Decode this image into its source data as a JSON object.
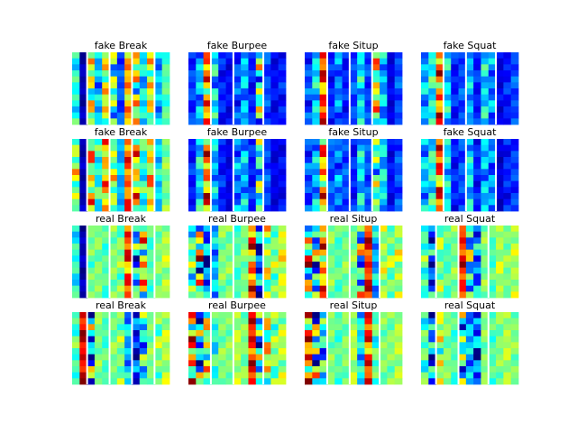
{
  "chart_data": {
    "type": "heatmap",
    "colormap": "jet",
    "value_range": [
      0,
      1
    ],
    "rows": 4,
    "cols": 4,
    "row_types": [
      "fake",
      "fake",
      "real",
      "real"
    ],
    "col_classes": [
      "Break",
      "Burpee",
      "Situp",
      "Squat"
    ],
    "panels": [
      {
        "title": "fake Break",
        "separator_columns": [
          2,
          5,
          8,
          11
        ],
        "column_profiles": [
          {
            "base": 0.4,
            "amp": 0.08
          },
          {
            "base": 0.05,
            "amp": 0.03
          },
          {
            "base": 0.55,
            "amp": 0.2
          },
          {
            "base": 0.3,
            "amp": 0.1
          },
          {
            "base": 0.6,
            "amp": 0.15
          },
          {
            "base": 0.45,
            "amp": 0.2
          },
          {
            "base": 0.2,
            "amp": 0.05
          },
          {
            "base": 0.7,
            "amp": 0.1
          },
          {
            "base": 0.55,
            "amp": 0.25
          },
          {
            "base": 0.35,
            "amp": 0.1
          },
          {
            "base": 0.6,
            "amp": 0.15
          },
          {
            "base": 0.3,
            "amp": 0.08
          },
          {
            "base": 0.45,
            "amp": 0.05
          }
        ]
      },
      {
        "title": "fake Burpee",
        "separator_columns": [
          3,
          6,
          10
        ],
        "column_profiles": [
          {
            "base": 0.18,
            "amp": 0.05
          },
          {
            "base": 0.3,
            "amp": 0.1
          },
          {
            "base": 0.72,
            "amp": 0.2
          },
          {
            "base": 0.35,
            "amp": 0.15
          },
          {
            "base": 0.15,
            "amp": 0.05
          },
          {
            "base": 0.12,
            "amp": 0.04
          },
          {
            "base": 0.2,
            "amp": 0.08
          },
          {
            "base": 0.3,
            "amp": 0.1
          },
          {
            "base": 0.15,
            "amp": 0.05
          },
          {
            "base": 0.45,
            "amp": 0.25
          },
          {
            "base": 0.2,
            "amp": 0.05
          },
          {
            "base": 0.12,
            "amp": 0.04
          },
          {
            "base": 0.15,
            "amp": 0.05
          }
        ]
      },
      {
        "title": "fake Situp",
        "separator_columns": [
          3,
          6,
          9
        ],
        "column_profiles": [
          {
            "base": 0.2,
            "amp": 0.08
          },
          {
            "base": 0.35,
            "amp": 0.1
          },
          {
            "base": 0.8,
            "amp": 0.15
          },
          {
            "base": 0.15,
            "amp": 0.05
          },
          {
            "base": 0.25,
            "amp": 0.08
          },
          {
            "base": 0.15,
            "amp": 0.05
          },
          {
            "base": 0.2,
            "amp": 0.05
          },
          {
            "base": 0.35,
            "amp": 0.1
          },
          {
            "base": 0.18,
            "amp": 0.05
          },
          {
            "base": 0.6,
            "amp": 0.2
          },
          {
            "base": 0.3,
            "amp": 0.1
          },
          {
            "base": 0.1,
            "amp": 0.03
          },
          {
            "base": 0.2,
            "amp": 0.05
          }
        ]
      },
      {
        "title": "fake Squat",
        "separator_columns": [
          3,
          6,
          10
        ],
        "column_profiles": [
          {
            "base": 0.3,
            "amp": 0.1
          },
          {
            "base": 0.4,
            "amp": 0.1
          },
          {
            "base": 0.75,
            "amp": 0.2
          },
          {
            "base": 0.35,
            "amp": 0.1
          },
          {
            "base": 0.15,
            "amp": 0.05
          },
          {
            "base": 0.2,
            "amp": 0.05
          },
          {
            "base": 0.3,
            "amp": 0.08
          },
          {
            "base": 0.15,
            "amp": 0.05
          },
          {
            "base": 0.35,
            "amp": 0.1
          },
          {
            "base": 0.25,
            "amp": 0.1
          },
          {
            "base": 0.1,
            "amp": 0.04
          },
          {
            "base": 0.15,
            "amp": 0.05
          },
          {
            "base": 0.2,
            "amp": 0.05
          }
        ]
      },
      {
        "title": "fake Break",
        "separator_columns": [
          2,
          5,
          8,
          11
        ],
        "column_profiles": [
          {
            "base": 0.55,
            "amp": 0.15
          },
          {
            "base": 0.05,
            "amp": 0.03
          },
          {
            "base": 0.62,
            "amp": 0.2
          },
          {
            "base": 0.4,
            "amp": 0.1
          },
          {
            "base": 0.68,
            "amp": 0.15
          },
          {
            "base": 0.55,
            "amp": 0.15
          },
          {
            "base": 0.3,
            "amp": 0.05
          },
          {
            "base": 0.78,
            "amp": 0.1
          },
          {
            "base": 0.65,
            "amp": 0.2
          },
          {
            "base": 0.4,
            "amp": 0.1
          },
          {
            "base": 0.65,
            "amp": 0.15
          },
          {
            "base": 0.35,
            "amp": 0.08
          },
          {
            "base": 0.5,
            "amp": 0.05
          }
        ]
      },
      {
        "title": "fake Burpee",
        "separator_columns": [
          3,
          6,
          10
        ],
        "column_profiles": [
          {
            "base": 0.15,
            "amp": 0.05
          },
          {
            "base": 0.35,
            "amp": 0.1
          },
          {
            "base": 0.75,
            "amp": 0.2
          },
          {
            "base": 0.3,
            "amp": 0.1
          },
          {
            "base": 0.15,
            "amp": 0.05
          },
          {
            "base": 0.1,
            "amp": 0.03
          },
          {
            "base": 0.25,
            "amp": 0.1
          },
          {
            "base": 0.3,
            "amp": 0.1
          },
          {
            "base": 0.15,
            "amp": 0.05
          },
          {
            "base": 0.4,
            "amp": 0.2
          },
          {
            "base": 0.2,
            "amp": 0.05
          },
          {
            "base": 0.1,
            "amp": 0.03
          },
          {
            "base": 0.12,
            "amp": 0.04
          }
        ]
      },
      {
        "title": "fake Situp",
        "separator_columns": [
          3,
          6,
          9
        ],
        "column_profiles": [
          {
            "base": 0.2,
            "amp": 0.08
          },
          {
            "base": 0.3,
            "amp": 0.1
          },
          {
            "base": 0.7,
            "amp": 0.2
          },
          {
            "base": 0.2,
            "amp": 0.05
          },
          {
            "base": 0.25,
            "amp": 0.1
          },
          {
            "base": 0.2,
            "amp": 0.05
          },
          {
            "base": 0.15,
            "amp": 0.05
          },
          {
            "base": 0.35,
            "amp": 0.1
          },
          {
            "base": 0.2,
            "amp": 0.05
          },
          {
            "base": 0.45,
            "amp": 0.2
          },
          {
            "base": 0.35,
            "amp": 0.1
          },
          {
            "base": 0.12,
            "amp": 0.04
          },
          {
            "base": 0.2,
            "amp": 0.05
          }
        ]
      },
      {
        "title": "fake Squat",
        "separator_columns": [
          3,
          6,
          10
        ],
        "column_profiles": [
          {
            "base": 0.3,
            "amp": 0.1
          },
          {
            "base": 0.4,
            "amp": 0.1
          },
          {
            "base": 0.78,
            "amp": 0.18
          },
          {
            "base": 0.35,
            "amp": 0.1
          },
          {
            "base": 0.15,
            "amp": 0.05
          },
          {
            "base": 0.2,
            "amp": 0.05
          },
          {
            "base": 0.35,
            "amp": 0.1
          },
          {
            "base": 0.15,
            "amp": 0.05
          },
          {
            "base": 0.3,
            "amp": 0.1
          },
          {
            "base": 0.25,
            "amp": 0.1
          },
          {
            "base": 0.08,
            "amp": 0.03
          },
          {
            "base": 0.15,
            "amp": 0.05
          },
          {
            "base": 0.18,
            "amp": 0.05
          }
        ]
      },
      {
        "title": "real Break",
        "separator_columns": [
          2,
          5,
          8,
          11
        ],
        "column_profiles": [
          {
            "base": 0.4,
            "amp": 0.08
          },
          {
            "base": 0.05,
            "amp": 0.04
          },
          {
            "base": 0.48,
            "amp": 0.06
          },
          {
            "base": 0.5,
            "amp": 0.05
          },
          {
            "base": 0.45,
            "amp": 0.05
          },
          {
            "base": 0.5,
            "amp": 0.05
          },
          {
            "base": 0.5,
            "amp": 0.08
          },
          {
            "base": 0.8,
            "amp": 0.15
          },
          {
            "base": 0.3,
            "amp": 0.25
          },
          {
            "base": 0.6,
            "amp": 0.25
          },
          {
            "base": 0.45,
            "amp": 0.05
          },
          {
            "base": 0.5,
            "amp": 0.05
          },
          {
            "base": 0.55,
            "amp": 0.06
          }
        ]
      },
      {
        "title": "real Burpee",
        "separator_columns": [
          3,
          6,
          10
        ],
        "column_profiles": [
          {
            "base": 0.45,
            "amp": 0.15
          },
          {
            "base": 0.55,
            "amp": 0.4
          },
          {
            "base": 0.2,
            "amp": 0.2
          },
          {
            "base": 0.3,
            "amp": 0.1
          },
          {
            "base": 0.5,
            "amp": 0.05
          },
          {
            "base": 0.5,
            "amp": 0.06
          },
          {
            "base": 0.45,
            "amp": 0.05
          },
          {
            "base": 0.5,
            "amp": 0.05
          },
          {
            "base": 0.75,
            "amp": 0.2
          },
          {
            "base": 0.2,
            "amp": 0.2
          },
          {
            "base": 0.55,
            "amp": 0.15
          },
          {
            "base": 0.5,
            "amp": 0.1
          },
          {
            "base": 0.6,
            "amp": 0.08
          }
        ]
      },
      {
        "title": "real Situp",
        "separator_columns": [
          3,
          6,
          10
        ],
        "column_profiles": [
          {
            "base": 0.6,
            "amp": 0.35
          },
          {
            "base": 0.35,
            "amp": 0.3
          },
          {
            "base": 0.7,
            "amp": 0.2
          },
          {
            "base": 0.5,
            "amp": 0.05
          },
          {
            "base": 0.45,
            "amp": 0.05
          },
          {
            "base": 0.5,
            "amp": 0.05
          },
          {
            "base": 0.5,
            "amp": 0.05
          },
          {
            "base": 0.4,
            "amp": 0.3
          },
          {
            "base": 0.85,
            "amp": 0.1
          },
          {
            "base": 0.3,
            "amp": 0.1
          },
          {
            "base": 0.55,
            "amp": 0.08
          },
          {
            "base": 0.5,
            "amp": 0.1
          },
          {
            "base": 0.55,
            "amp": 0.1
          }
        ]
      },
      {
        "title": "real Squat",
        "separator_columns": [
          2,
          5,
          9
        ],
        "column_profiles": [
          {
            "base": 0.45,
            "amp": 0.1
          },
          {
            "base": 0.2,
            "amp": 0.2
          },
          {
            "base": 0.5,
            "amp": 0.1
          },
          {
            "base": 0.45,
            "amp": 0.05
          },
          {
            "base": 0.5,
            "amp": 0.05
          },
          {
            "base": 0.85,
            "amp": 0.1
          },
          {
            "base": 0.4,
            "amp": 0.25
          },
          {
            "base": 0.25,
            "amp": 0.15
          },
          {
            "base": 0.5,
            "amp": 0.05
          },
          {
            "base": 0.45,
            "amp": 0.05
          },
          {
            "base": 0.55,
            "amp": 0.06
          },
          {
            "base": 0.5,
            "amp": 0.05
          },
          {
            "base": 0.55,
            "amp": 0.06
          }
        ]
      },
      {
        "title": "real Break",
        "separator_columns": [
          2,
          5,
          8,
          11
        ],
        "column_profiles": [
          {
            "base": 0.45,
            "amp": 0.08
          },
          {
            "base": 0.9,
            "amp": 0.08
          },
          {
            "base": 0.3,
            "amp": 0.3
          },
          {
            "base": 0.5,
            "amp": 0.05
          },
          {
            "base": 0.45,
            "amp": 0.05
          },
          {
            "base": 0.5,
            "amp": 0.05
          },
          {
            "base": 0.5,
            "amp": 0.08
          },
          {
            "base": 0.3,
            "amp": 0.1
          },
          {
            "base": 0.15,
            "amp": 0.15
          },
          {
            "base": 0.35,
            "amp": 0.2
          },
          {
            "base": 0.5,
            "amp": 0.05
          },
          {
            "base": 0.5,
            "amp": 0.1
          },
          {
            "base": 0.55,
            "amp": 0.06
          }
        ]
      },
      {
        "title": "real Burpee",
        "separator_columns": [
          3,
          6,
          10
        ],
        "column_profiles": [
          {
            "base": 0.7,
            "amp": 0.3
          },
          {
            "base": 0.3,
            "amp": 0.3
          },
          {
            "base": 0.55,
            "amp": 0.2
          },
          {
            "base": 0.4,
            "amp": 0.1
          },
          {
            "base": 0.5,
            "amp": 0.05
          },
          {
            "base": 0.5,
            "amp": 0.05
          },
          {
            "base": 0.55,
            "amp": 0.05
          },
          {
            "base": 0.5,
            "amp": 0.05
          },
          {
            "base": 0.85,
            "amp": 0.12
          },
          {
            "base": 0.35,
            "amp": 0.3
          },
          {
            "base": 0.6,
            "amp": 0.2
          },
          {
            "base": 0.5,
            "amp": 0.1
          },
          {
            "base": 0.55,
            "amp": 0.08
          }
        ]
      },
      {
        "title": "real Situp",
        "separator_columns": [
          3,
          6,
          10
        ],
        "column_profiles": [
          {
            "base": 0.75,
            "amp": 0.25
          },
          {
            "base": 0.4,
            "amp": 0.35
          },
          {
            "base": 0.35,
            "amp": 0.2
          },
          {
            "base": 0.5,
            "amp": 0.05
          },
          {
            "base": 0.45,
            "amp": 0.05
          },
          {
            "base": 0.5,
            "amp": 0.05
          },
          {
            "base": 0.55,
            "amp": 0.05
          },
          {
            "base": 0.35,
            "amp": 0.1
          },
          {
            "base": 0.8,
            "amp": 0.15
          },
          {
            "base": 0.45,
            "amp": 0.1
          },
          {
            "base": 0.5,
            "amp": 0.05
          },
          {
            "base": 0.5,
            "amp": 0.05
          },
          {
            "base": 0.55,
            "amp": 0.05
          }
        ]
      },
      {
        "title": "real Squat",
        "separator_columns": [
          2,
          5,
          9
        ],
        "column_profiles": [
          {
            "base": 0.45,
            "amp": 0.1
          },
          {
            "base": 0.25,
            "amp": 0.25
          },
          {
            "base": 0.55,
            "amp": 0.15
          },
          {
            "base": 0.5,
            "amp": 0.05
          },
          {
            "base": 0.45,
            "amp": 0.05
          },
          {
            "base": 0.4,
            "amp": 0.25
          },
          {
            "base": 0.3,
            "amp": 0.1
          },
          {
            "base": 0.2,
            "amp": 0.2
          },
          {
            "base": 0.5,
            "amp": 0.05
          },
          {
            "base": 0.45,
            "amp": 0.05
          },
          {
            "base": 0.5,
            "amp": 0.05
          },
          {
            "base": 0.55,
            "amp": 0.05
          },
          {
            "base": 0.5,
            "amp": 0.05
          }
        ]
      }
    ],
    "cells_per_panel": {
      "columns": 13,
      "rows": 12
    },
    "axes_visible": false,
    "grid": false
  }
}
